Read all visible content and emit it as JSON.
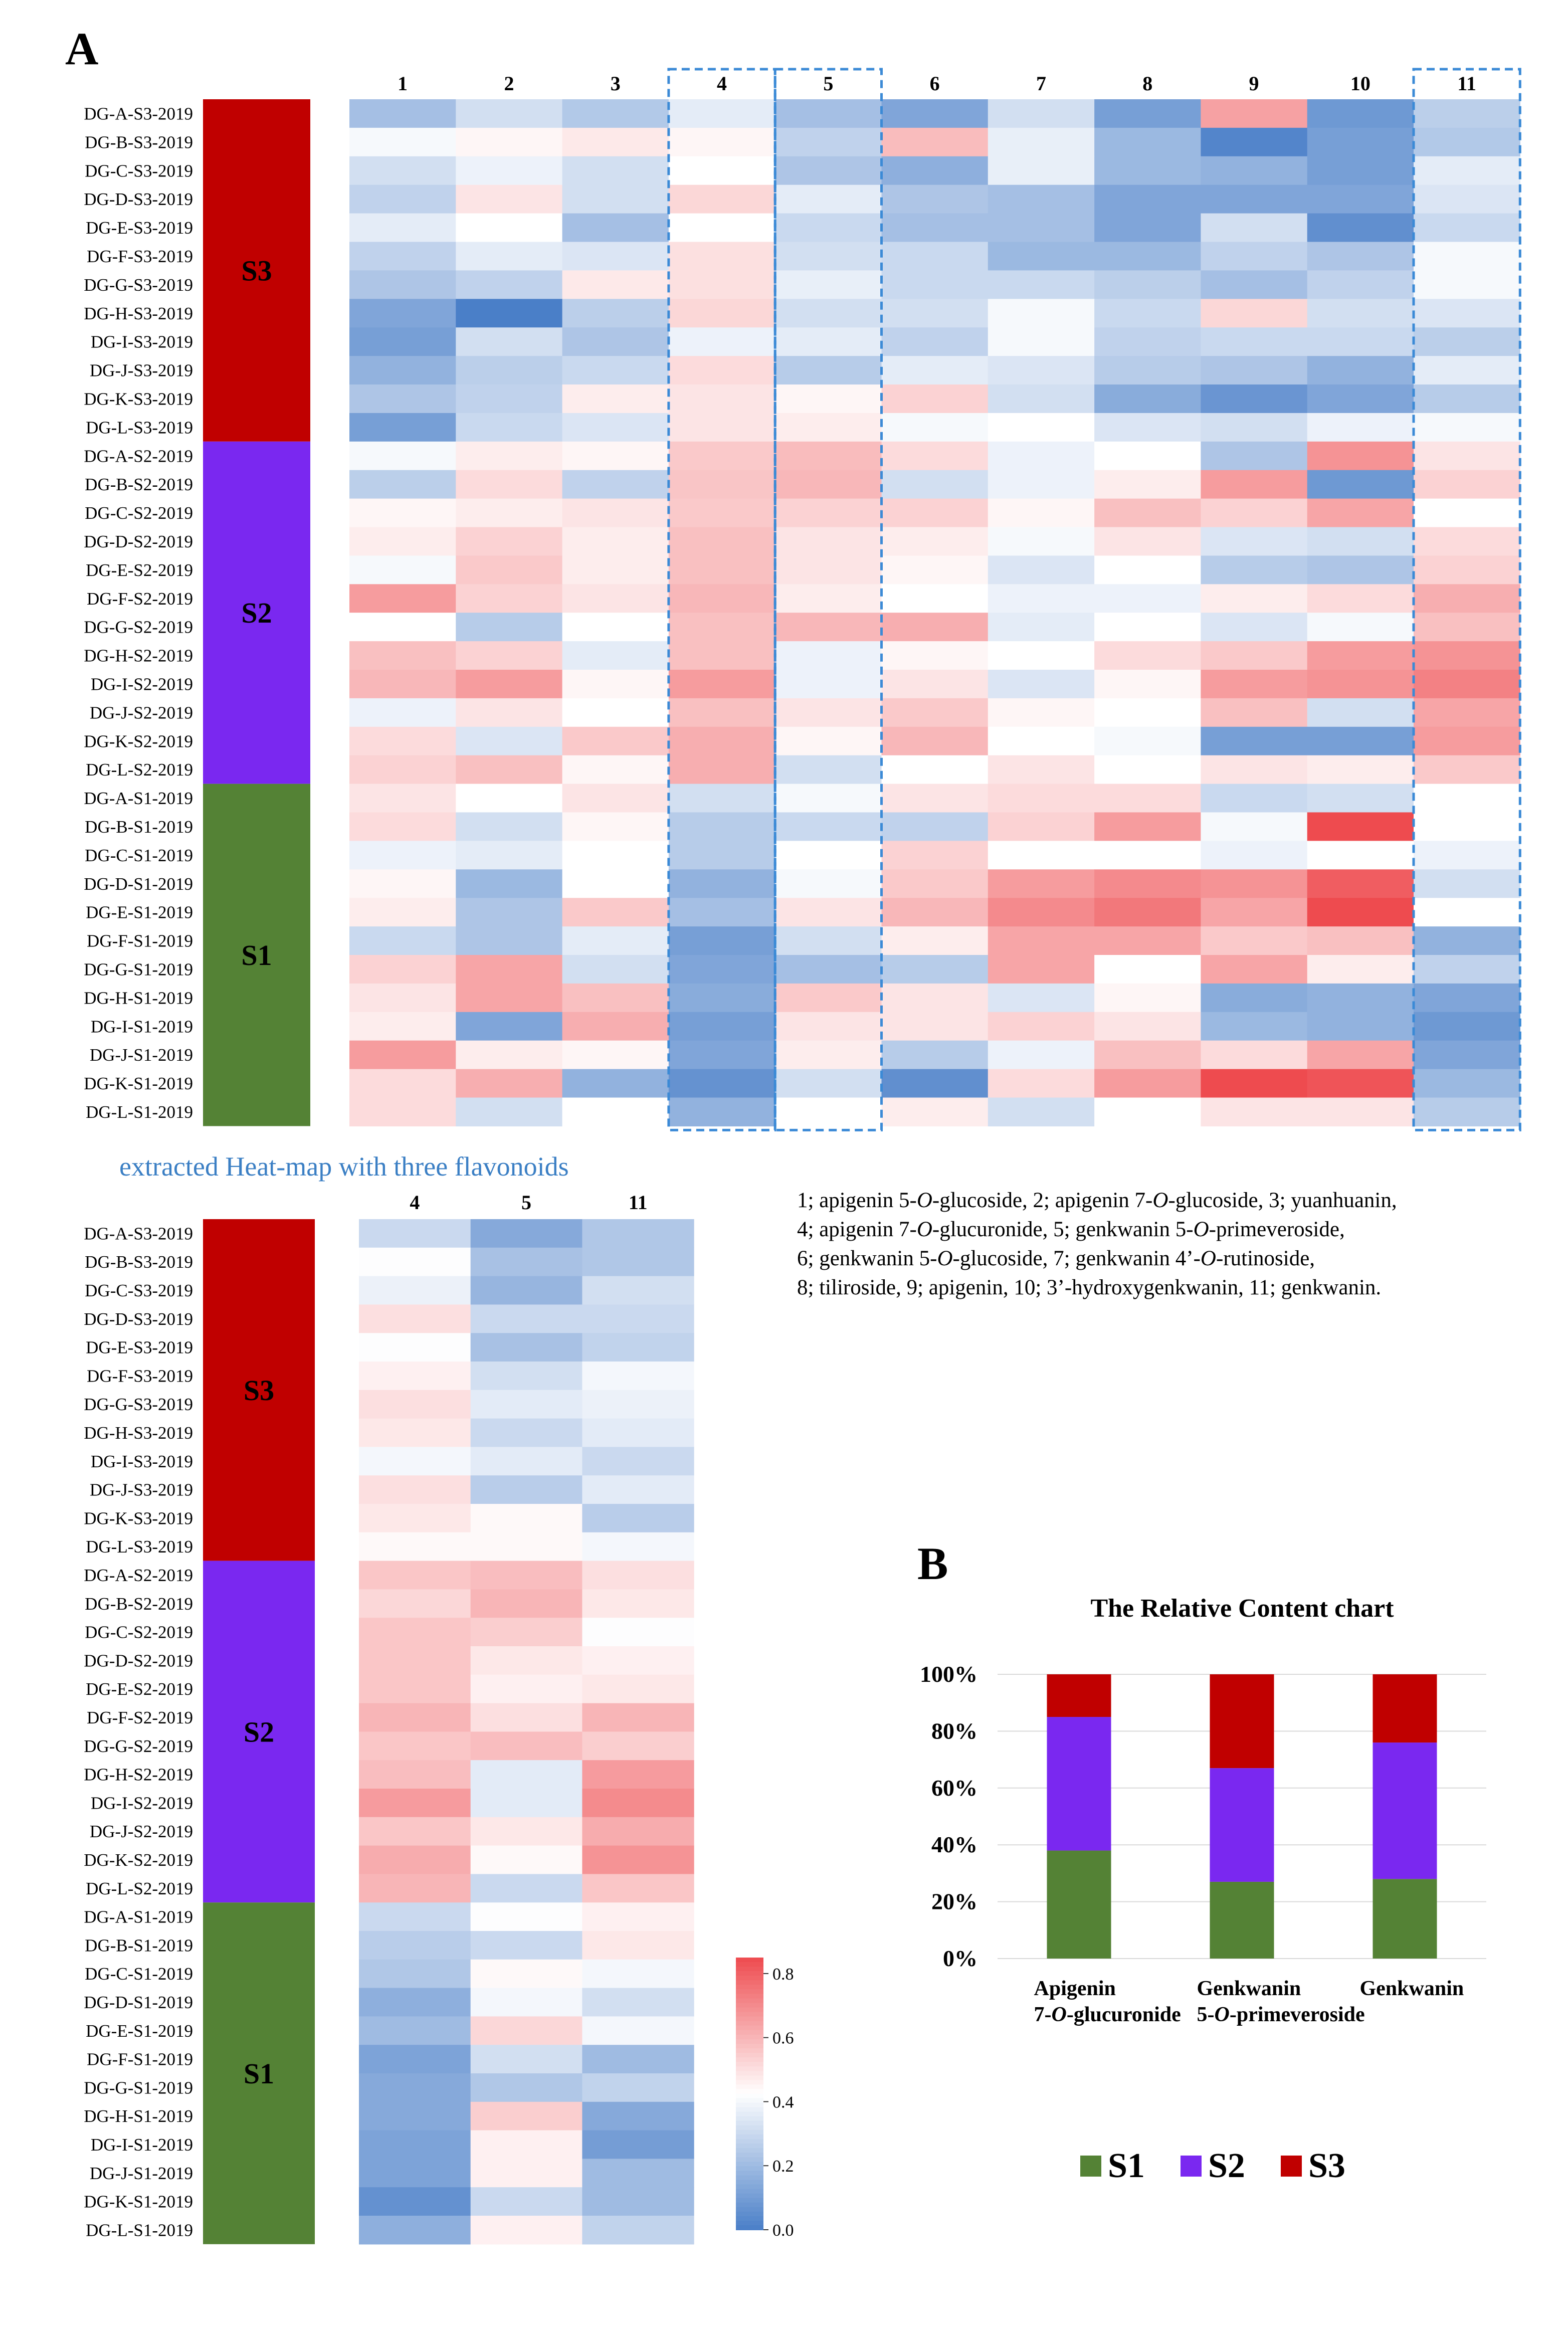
{
  "panel_a_label": "A",
  "panel_b_label": "B",
  "column_numbers": [
    "1",
    "2",
    "3",
    "4",
    "5",
    "6",
    "7",
    "8",
    "9",
    "10",
    "11"
  ],
  "row_labels": [
    "DG-A-S3-2019",
    "DG-B-S3-2019",
    "DG-C-S3-2019",
    "DG-D-S3-2019",
    "DG-E-S3-2019",
    "DG-F-S3-2019",
    "DG-G-S3-2019",
    "DG-H-S3-2019",
    "DG-I-S3-2019",
    "DG-J-S3-2019",
    "DG-K-S3-2019",
    "DG-L-S3-2019",
    "DG-A-S2-2019",
    "DG-B-S2-2019",
    "DG-C-S2-2019",
    "DG-D-S2-2019",
    "DG-E-S2-2019",
    "DG-F-S2-2019",
    "DG-G-S2-2019",
    "DG-H-S2-2019",
    "DG-I-S2-2019",
    "DG-J-S2-2019",
    "DG-K-S2-2019",
    "DG-L-S2-2019",
    "DG-A-S1-2019",
    "DG-B-S1-2019",
    "DG-C-S1-2019",
    "DG-D-S1-2019",
    "DG-E-S1-2019",
    "DG-F-S1-2019",
    "DG-G-S1-2019",
    "DG-H-S1-2019",
    "DG-I-S1-2019",
    "DG-J-S1-2019",
    "DG-K-S1-2019",
    "DG-L-S1-2019"
  ],
  "groups": [
    {
      "label": "S3",
      "color": "#c00000"
    },
    {
      "label": "S2",
      "color": "#7a28f0"
    },
    {
      "label": "S1",
      "color": "#548235"
    }
  ],
  "extracted_title": "extracted Heat-map with three flavonoids",
  "extracted_columns": [
    "4",
    "5",
    "11"
  ],
  "compound_key": [
    "1; apigenin 5-O-glucoside, 2; apigenin 7-O-glucoside, 3; yuanhuanin,",
    "4; apigenin 7-O-glucuronide, 5; genkwanin 5-O-primeveroside,",
    "6; genkwanin 5-O-glucoside, 7; genkwanin 4’-O-rutinoside,",
    "8; tiliroside, 9; apigenin, 10; 3’-hydroxygenkwanin, 11; genkwanin."
  ],
  "colors": {
    "low": "#4a7fc8",
    "mid": "#ffffff",
    "high": "#ee4b4f",
    "dashed_box": "#3b8ad6"
  },
  "chart_data": [
    {
      "type": "heatmap",
      "title": "",
      "x": [
        "1",
        "2",
        "3",
        "4",
        "5",
        "6",
        "7",
        "8",
        "9",
        "10",
        "11"
      ],
      "y_groups": [
        "S3",
        "S2",
        "S1"
      ],
      "colorscale": {
        "min": 0.0,
        "max": 0.8
      },
      "highlighted_columns": [
        "4",
        "5",
        "11"
      ],
      "values": [
        [
          0.2,
          0.3,
          0.23,
          0.34,
          0.2,
          0.12,
          0.3,
          0.1,
          0.61,
          0.08,
          0.25
        ],
        [
          0.38,
          0.42,
          0.45,
          0.42,
          0.26,
          0.55,
          0.35,
          0.18,
          0.02,
          0.1,
          0.23
        ],
        [
          0.3,
          0.36,
          0.3,
          0.4,
          0.22,
          0.15,
          0.35,
          0.18,
          0.16,
          0.1,
          0.34
        ],
        [
          0.26,
          0.46,
          0.3,
          0.49,
          0.34,
          0.22,
          0.2,
          0.12,
          0.12,
          0.12,
          0.32
        ],
        [
          0.34,
          0.4,
          0.2,
          0.4,
          0.28,
          0.2,
          0.2,
          0.12,
          0.3,
          0.05,
          0.28
        ],
        [
          0.26,
          0.34,
          0.32,
          0.47,
          0.3,
          0.28,
          0.18,
          0.18,
          0.26,
          0.22,
          0.38
        ],
        [
          0.22,
          0.26,
          0.45,
          0.47,
          0.35,
          0.28,
          0.28,
          0.25,
          0.2,
          0.26,
          0.38
        ],
        [
          0.12,
          0.0,
          0.25,
          0.49,
          0.3,
          0.3,
          0.38,
          0.28,
          0.49,
          0.3,
          0.32
        ],
        [
          0.1,
          0.3,
          0.22,
          0.36,
          0.34,
          0.26,
          0.38,
          0.26,
          0.28,
          0.28,
          0.25
        ],
        [
          0.16,
          0.25,
          0.28,
          0.48,
          0.24,
          0.34,
          0.32,
          0.24,
          0.22,
          0.16,
          0.34
        ],
        [
          0.22,
          0.26,
          0.44,
          0.46,
          0.42,
          0.5,
          0.3,
          0.14,
          0.07,
          0.12,
          0.24
        ],
        [
          0.1,
          0.28,
          0.32,
          0.46,
          0.44,
          0.38,
          0.4,
          0.32,
          0.3,
          0.36,
          0.38
        ],
        [
          0.38,
          0.44,
          0.42,
          0.52,
          0.55,
          0.48,
          0.36,
          0.4,
          0.22,
          0.64,
          0.46
        ],
        [
          0.25,
          0.48,
          0.26,
          0.53,
          0.56,
          0.3,
          0.36,
          0.44,
          0.62,
          0.08,
          0.5
        ],
        [
          0.42,
          0.44,
          0.46,
          0.52,
          0.5,
          0.5,
          0.42,
          0.54,
          0.5,
          0.6,
          0.4
        ],
        [
          0.44,
          0.5,
          0.44,
          0.54,
          0.46,
          0.44,
          0.38,
          0.46,
          0.32,
          0.3,
          0.48
        ],
        [
          0.38,
          0.52,
          0.44,
          0.54,
          0.46,
          0.42,
          0.32,
          0.4,
          0.24,
          0.22,
          0.5
        ],
        [
          0.62,
          0.5,
          0.46,
          0.56,
          0.44,
          0.4,
          0.36,
          0.36,
          0.44,
          0.48,
          0.58
        ],
        [
          0.4,
          0.24,
          0.4,
          0.54,
          0.56,
          0.58,
          0.34,
          0.4,
          0.32,
          0.38,
          0.54
        ],
        [
          0.54,
          0.5,
          0.34,
          0.54,
          0.36,
          0.42,
          0.4,
          0.48,
          0.52,
          0.62,
          0.64
        ],
        [
          0.56,
          0.62,
          0.42,
          0.62,
          0.36,
          0.46,
          0.32,
          0.42,
          0.62,
          0.64,
          0.68
        ],
        [
          0.36,
          0.46,
          0.4,
          0.54,
          0.46,
          0.52,
          0.42,
          0.4,
          0.54,
          0.3,
          0.6
        ],
        [
          0.48,
          0.32,
          0.52,
          0.58,
          0.42,
          0.56,
          0.4,
          0.38,
          0.1,
          0.1,
          0.62
        ],
        [
          0.5,
          0.54,
          0.42,
          0.58,
          0.3,
          0.4,
          0.46,
          0.4,
          0.46,
          0.44,
          0.52
        ],
        [
          0.46,
          0.4,
          0.46,
          0.3,
          0.38,
          0.46,
          0.48,
          0.48,
          0.28,
          0.3,
          0.4
        ],
        [
          0.48,
          0.3,
          0.42,
          0.24,
          0.28,
          0.26,
          0.5,
          0.62,
          0.38,
          0.85,
          0.4
        ],
        [
          0.36,
          0.34,
          0.4,
          0.24,
          0.4,
          0.5,
          0.4,
          0.4,
          0.36,
          0.4,
          0.36
        ],
        [
          0.42,
          0.18,
          0.4,
          0.16,
          0.38,
          0.52,
          0.62,
          0.66,
          0.64,
          0.76,
          0.3
        ],
        [
          0.44,
          0.22,
          0.52,
          0.2,
          0.46,
          0.56,
          0.66,
          0.7,
          0.6,
          0.8,
          0.4
        ],
        [
          0.28,
          0.22,
          0.34,
          0.1,
          0.3,
          0.44,
          0.6,
          0.6,
          0.52,
          0.54,
          0.16
        ],
        [
          0.5,
          0.6,
          0.3,
          0.12,
          0.2,
          0.24,
          0.6,
          0.4,
          0.6,
          0.44,
          0.26
        ],
        [
          0.46,
          0.6,
          0.54,
          0.14,
          0.52,
          0.46,
          0.32,
          0.42,
          0.14,
          0.16,
          0.12
        ],
        [
          0.44,
          0.12,
          0.58,
          0.1,
          0.46,
          0.46,
          0.5,
          0.46,
          0.18,
          0.16,
          0.08
        ],
        [
          0.62,
          0.44,
          0.42,
          0.12,
          0.44,
          0.24,
          0.36,
          0.54,
          0.48,
          0.6,
          0.12
        ],
        [
          0.48,
          0.58,
          0.16,
          0.06,
          0.3,
          0.05,
          0.48,
          0.62,
          0.8,
          0.78,
          0.18
        ],
        [
          0.48,
          0.3,
          0.4,
          0.16,
          0.4,
          0.44,
          0.3,
          0.4,
          0.46,
          0.46,
          0.24
        ]
      ]
    },
    {
      "type": "heatmap",
      "title": "extracted Heat-map with three flavonoids",
      "x": [
        "4",
        "5",
        "11"
      ],
      "colorbar": {
        "ticks": [
          0.0,
          0.2,
          0.4,
          0.6,
          0.8
        ],
        "tick_labels": [
          "0.0",
          "0.2",
          "0.4",
          "0.6",
          "0.8"
        ],
        "min": 0.0,
        "max": 0.85
      },
      "values": [
        [
          0.3,
          0.14,
          0.24
        ],
        [
          0.42,
          0.22,
          0.24
        ],
        [
          0.38,
          0.18,
          0.32
        ],
        [
          0.5,
          0.3,
          0.3
        ],
        [
          0.42,
          0.22,
          0.28
        ],
        [
          0.46,
          0.32,
          0.4
        ],
        [
          0.5,
          0.36,
          0.38
        ],
        [
          0.48,
          0.3,
          0.36
        ],
        [
          0.4,
          0.36,
          0.3
        ],
        [
          0.5,
          0.26,
          0.36
        ],
        [
          0.48,
          0.44,
          0.26
        ],
        [
          0.44,
          0.44,
          0.4
        ],
        [
          0.56,
          0.58,
          0.5
        ],
        [
          0.52,
          0.6,
          0.48
        ],
        [
          0.56,
          0.54,
          0.42
        ],
        [
          0.56,
          0.48,
          0.46
        ],
        [
          0.56,
          0.46,
          0.48
        ],
        [
          0.6,
          0.5,
          0.6
        ],
        [
          0.56,
          0.58,
          0.54
        ],
        [
          0.58,
          0.36,
          0.66
        ],
        [
          0.66,
          0.36,
          0.7
        ],
        [
          0.56,
          0.48,
          0.62
        ],
        [
          0.62,
          0.44,
          0.68
        ],
        [
          0.6,
          0.3,
          0.56
        ],
        [
          0.3,
          0.42,
          0.46
        ],
        [
          0.26,
          0.3,
          0.48
        ],
        [
          0.24,
          0.44,
          0.4
        ],
        [
          0.16,
          0.4,
          0.32
        ],
        [
          0.2,
          0.52,
          0.4
        ],
        [
          0.12,
          0.32,
          0.2
        ],
        [
          0.14,
          0.24,
          0.28
        ],
        [
          0.14,
          0.54,
          0.14
        ],
        [
          0.12,
          0.46,
          0.1
        ],
        [
          0.12,
          0.46,
          0.2
        ],
        [
          0.06,
          0.3,
          0.2
        ],
        [
          0.16,
          0.46,
          0.28
        ]
      ]
    },
    {
      "type": "bar",
      "stacked": true,
      "title": "The Relative Content chart",
      "categories": [
        [
          "Apigenin",
          "7-O-glucuronide"
        ],
        [
          "Genkwanin",
          "5-O-primeveroside"
        ],
        [
          "Genkwanin"
        ]
      ],
      "series": [
        {
          "name": "S1",
          "color": "#548235",
          "values": [
            38,
            27,
            28
          ]
        },
        {
          "name": "S2",
          "color": "#7a28f0",
          "values": [
            47,
            40,
            48
          ]
        },
        {
          "name": "S3",
          "color": "#c00000",
          "values": [
            15,
            33,
            24
          ]
        }
      ],
      "yticks": [
        "0%",
        "20%",
        "40%",
        "60%",
        "80%",
        "100%"
      ],
      "ylim": [
        0,
        100
      ]
    }
  ]
}
